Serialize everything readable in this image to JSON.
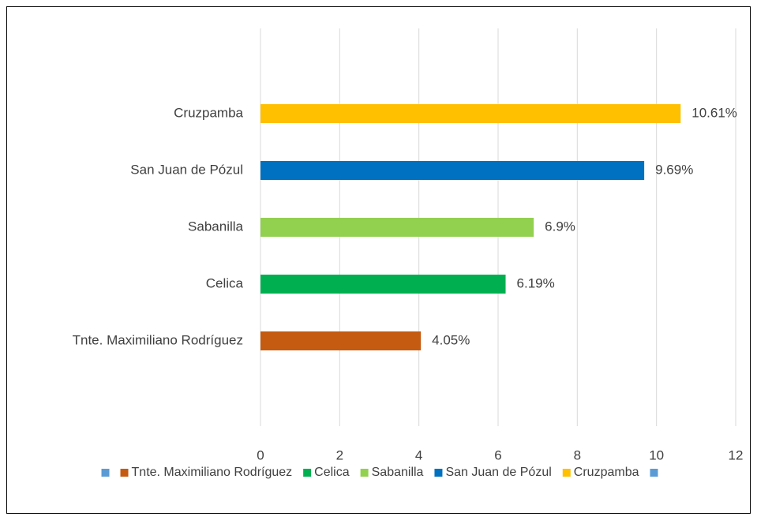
{
  "chart_data": {
    "type": "bar",
    "orientation": "horizontal",
    "categories": [
      null,
      "Tnte. Maximiliano Rodríguez",
      "Celica",
      "Sabanilla",
      "San Juan de Pózul",
      "Cruzpamba",
      null
    ],
    "values": [
      null,
      4.05,
      6.19,
      6.9,
      9.69,
      10.61,
      null
    ],
    "value_labels": [
      null,
      "4.05%",
      "6.19%",
      "6.9%",
      "9.69%",
      "10.61%",
      null
    ],
    "colors": [
      "#5b9bd5",
      "#c55a11",
      "#00b050",
      "#92d050",
      "#0070c0",
      "#ffc000",
      "#5b9bd5"
    ],
    "xlim": [
      0,
      12
    ],
    "xticks": [
      0,
      2,
      4,
      6,
      8,
      10,
      12
    ],
    "grid": true,
    "legend": "bottom"
  }
}
